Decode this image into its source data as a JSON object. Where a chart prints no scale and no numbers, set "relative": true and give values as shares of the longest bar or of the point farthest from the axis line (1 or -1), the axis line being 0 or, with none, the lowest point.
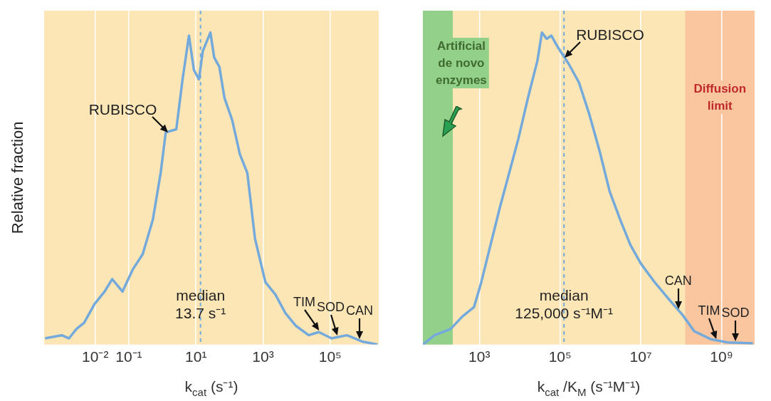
{
  "chart_data": [
    {
      "type": "line",
      "log": "x",
      "relative": true,
      "grid": "x",
      "ylabel": "Relative fraction",
      "xlabel": "k$_{cat}$ (s⁻¹)",
      "xlim": [
        0.0003,
        2800000
      ],
      "xticks": [
        {
          "value": 0.01,
          "label": "10⁻²"
        },
        {
          "value": 0.1,
          "label": "10⁻¹"
        },
        {
          "value": 10,
          "label": "10¹"
        },
        {
          "value": 1000,
          "label": "10³"
        },
        {
          "value": 100000,
          "label": "10⁵"
        }
      ],
      "x": [
        0.00032,
        0.001,
        0.00166,
        0.00275,
        0.00468,
        0.0095,
        0.019,
        0.032,
        0.065,
        0.13,
        0.26,
        0.52,
        0.89,
        1.26,
        2.6,
        4.0,
        6.2,
        8.7,
        12.3,
        16,
        27,
        35,
        50,
        71,
        120,
        204,
        340,
        575,
        1175,
        2340,
        4680,
        9550,
        22900,
        45700,
        110000,
        316000,
        890000,
        2570000
      ],
      "series": [
        {
          "color": "#74aadb",
          "values": [
            0.02,
            0.03,
            0.02,
            0.05,
            0.07,
            0.13,
            0.17,
            0.21,
            0.17,
            0.24,
            0.29,
            0.4,
            0.55,
            0.68,
            0.69,
            0.85,
            0.99,
            0.88,
            0.85,
            0.94,
            1.0,
            0.92,
            0.89,
            0.79,
            0.72,
            0.61,
            0.55,
            0.34,
            0.2,
            0.16,
            0.1,
            0.06,
            0.03,
            0.04,
            0.02,
            0.03,
            0.01,
            0
          ]
        }
      ],
      "ref_lines": [
        {
          "axis": "x",
          "value": 13.7,
          "label": "median\n13.7 s⁻¹",
          "color": "#74aadb",
          "line_style": "dashed"
        }
      ],
      "annotations": [
        {
          "text": "RUBISCO",
          "x": 1.5,
          "y": 0.68
        },
        {
          "text": "TIM",
          "x": 45700,
          "y": 0.04
        },
        {
          "text": "SOD",
          "x": 160000,
          "y": 0.024
        },
        {
          "text": "CAN",
          "x": 750000,
          "y": 0.013
        }
      ]
    },
    {
      "type": "line",
      "log": "x",
      "relative": true,
      "grid": "x",
      "xlabel": "k$_{cat}$ /K$_{M}$ (s⁻¹M⁻¹)",
      "xlim": [
        40,
        6600000000
      ],
      "xticks": [
        {
          "value": 1000,
          "label": "10³"
        },
        {
          "value": 100000,
          "label": "10⁵"
        },
        {
          "value": 10000000,
          "label": "10⁷"
        },
        {
          "value": 1000000000,
          "label": "10⁹"
        }
      ],
      "x": [
        40,
        78,
        195,
        380,
        740,
        1120,
        1900,
        3240,
        5500,
        9300,
        16000,
        27500,
        35500,
        46500,
        61000,
        91000,
        163000,
        294000,
        525000,
        955000,
        1700000,
        3100000,
        5500000,
        10000000,
        22000000,
        50000000,
        110000000,
        210000000,
        550000000,
        1400000000,
        6000000000
      ],
      "series": [
        {
          "color": "#74aadb",
          "values": [
            0,
            0.03,
            0.05,
            0.09,
            0.12,
            0.2,
            0.32,
            0.44,
            0.55,
            0.66,
            0.79,
            0.91,
            1.0,
            0.98,
            0.99,
            0.95,
            0.9,
            0.84,
            0.74,
            0.62,
            0.49,
            0.4,
            0.32,
            0.26,
            0.2,
            0.145,
            0.094,
            0.043,
            0.017,
            0.007,
            0.004
          ]
        }
      ],
      "bands": [
        {
          "axis": "x",
          "from": 40,
          "to": 220,
          "label": "Artificial\nde novo\nenzymes",
          "color": "#93d08a"
        },
        {
          "axis": "x",
          "from": 126000000,
          "to": 6600000000,
          "label": "Diffusion\nlimit",
          "color": "#f9c6a0"
        }
      ],
      "ref_lines": [
        {
          "axis": "x",
          "value": 125000,
          "label": "median\n125,000 s⁻¹M⁻¹",
          "color": "#74aadb",
          "line_style": "dashed"
        }
      ],
      "annotations": [
        {
          "text": "RUBISCO",
          "x": 130000,
          "y": 0.92
        },
        {
          "text": "CAN",
          "x": 85000000,
          "y": 0.11
        },
        {
          "text": "TIM",
          "x": 740000000,
          "y": 0.014
        },
        {
          "text": "SOD",
          "x": 2200000000,
          "y": 0.006
        }
      ]
    }
  ]
}
